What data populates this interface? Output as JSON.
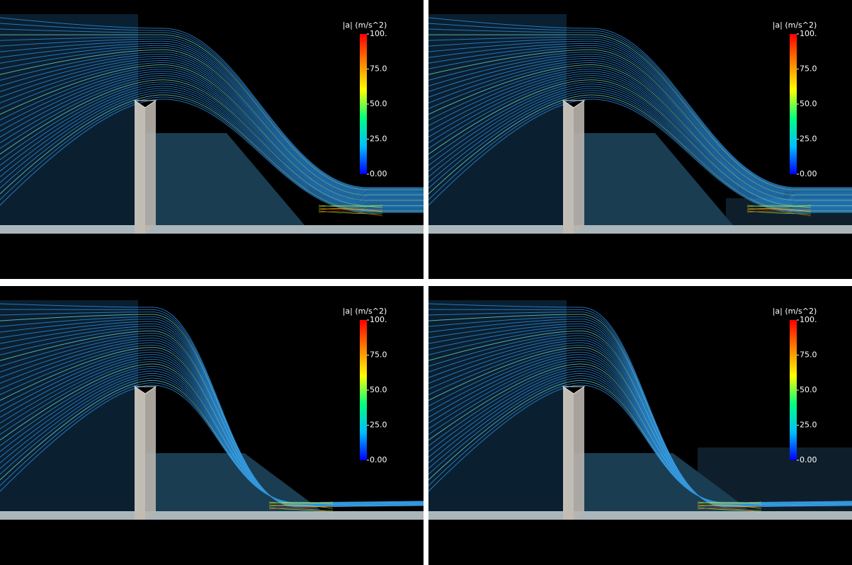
{
  "panels": [
    {
      "colorbar": {
        "title": "|a| (m/s^2)",
        "ticks": [
          "100.",
          "75.0",
          "50.0",
          "25.0",
          "0.00"
        ]
      }
    },
    {
      "colorbar": {
        "title": "|a| (m/s^2)",
        "ticks": [
          "100.",
          "75.0",
          "50.0",
          "25.0",
          "0.00"
        ]
      }
    },
    {
      "colorbar": {
        "title": "|a| (m/s^2)",
        "ticks": [
          "100.",
          "75.0",
          "50.0",
          "25.0",
          "0.00"
        ]
      }
    },
    {
      "colorbar": {
        "title": "|a| (m/s^2)",
        "ticks": [
          "100.",
          "75.0",
          "50.0",
          "25.0",
          "0.00"
        ]
      }
    }
  ]
}
